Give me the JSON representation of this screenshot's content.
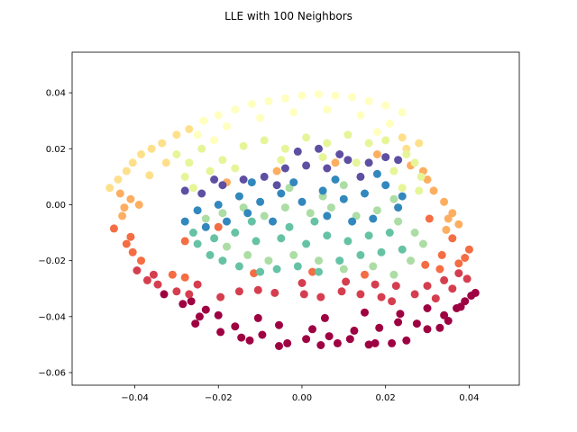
{
  "chart_data": {
    "type": "scatter",
    "title": "LLE with 100 Neighbors",
    "xlabel": "",
    "ylabel": "",
    "xlim": [
      -0.055,
      0.052
    ],
    "ylim": [
      -0.0645,
      0.0545
    ],
    "xticks": [
      -0.04,
      -0.02,
      0.0,
      0.02,
      0.04
    ],
    "xtick_labels": [
      "−0.04",
      "−0.02",
      "0.00",
      "0.02",
      "0.04"
    ],
    "yticks": [
      -0.06,
      -0.04,
      -0.02,
      0.0,
      0.02,
      0.04
    ],
    "ytick_labels": [
      "−0.06",
      "−0.04",
      "−0.02",
      "0.00",
      "0.02",
      "0.04"
    ],
    "grid": false,
    "colormap": "Spectral",
    "colormap_stops": [
      "#9e0142",
      "#d53e4f",
      "#f46d43",
      "#fdae61",
      "#fee08b",
      "#ffffbf",
      "#e6f598",
      "#abdda4",
      "#66c2a5",
      "#3288bd",
      "#5e4fa2"
    ],
    "points": [
      [
        -0.0055,
        -0.0505,
        0.0
      ],
      [
        -0.0035,
        -0.0495,
        0.0
      ],
      [
        0.0045,
        -0.0502,
        0.0
      ],
      [
        0.016,
        -0.05,
        0.0
      ],
      [
        0.0175,
        -0.0495,
        0.0
      ],
      [
        0.0215,
        -0.0495,
        0.0
      ],
      [
        -0.0145,
        -0.0475,
        0.0
      ],
      [
        -0.0125,
        -0.0485,
        0.0
      ],
      [
        0.0085,
        -0.0495,
        0.0
      ],
      [
        0.025,
        -0.0485,
        0.0
      ],
      [
        -0.0195,
        -0.0455,
        0.0
      ],
      [
        -0.0095,
        -0.0465,
        0.0
      ],
      [
        0.001,
        -0.048,
        0.0
      ],
      [
        0.0065,
        -0.047,
        0.0
      ],
      [
        0.0115,
        -0.048,
        0.0
      ],
      [
        0.03,
        -0.0445,
        0.0
      ],
      [
        0.033,
        -0.044,
        0.0
      ],
      [
        0.035,
        -0.0415,
        0.0
      ],
      [
        -0.0245,
        -0.04,
        0.0
      ],
      [
        -0.0255,
        -0.0425,
        0.0
      ],
      [
        -0.016,
        -0.0435,
        0.0
      ],
      [
        -0.0055,
        -0.043,
        0.0
      ],
      [
        0.0025,
        -0.0445,
        0.0
      ],
      [
        0.0125,
        -0.045,
        0.0
      ],
      [
        0.0185,
        -0.044,
        0.0
      ],
      [
        0.023,
        -0.042,
        0.0
      ],
      [
        0.0275,
        -0.0425,
        0.0
      ],
      [
        0.038,
        -0.0365,
        0.0
      ],
      [
        0.039,
        -0.0345,
        0.0
      ],
      [
        0.0405,
        -0.0325,
        0.0
      ],
      [
        0.0415,
        -0.0315,
        0.0
      ],
      [
        -0.0285,
        -0.0355,
        0.0
      ],
      [
        -0.023,
        -0.0375,
        0.0
      ],
      [
        -0.02,
        -0.0395,
        0.0
      ],
      [
        -0.0105,
        -0.0405,
        0.0
      ],
      [
        0.0055,
        -0.0405,
        0.0
      ],
      [
        0.015,
        -0.0385,
        0.0
      ],
      [
        0.0235,
        -0.039,
        0.0
      ],
      [
        0.034,
        -0.0395,
        0.0
      ],
      [
        0.037,
        -0.037,
        0.0
      ],
      [
        -0.033,
        -0.032,
        0.0
      ],
      [
        -0.0265,
        -0.0345,
        0.0
      ],
      [
        0.03,
        -0.037,
        0.0
      ],
      [
        -0.037,
        -0.027,
        0.1
      ],
      [
        -0.0345,
        -0.0285,
        0.1
      ],
      [
        -0.03,
        -0.031,
        0.1
      ],
      [
        -0.027,
        -0.032,
        0.1
      ],
      [
        -0.0195,
        -0.033,
        0.1
      ],
      [
        -0.015,
        -0.031,
        0.1
      ],
      [
        -0.0105,
        -0.0305,
        0.1
      ],
      [
        -0.0065,
        -0.0315,
        0.1
      ],
      [
        0.0005,
        -0.032,
        0.1
      ],
      [
        0.0045,
        -0.033,
        0.1
      ],
      [
        0.0095,
        -0.031,
        0.1
      ],
      [
        0.014,
        -0.032,
        0.1
      ],
      [
        0.019,
        -0.033,
        0.1
      ],
      [
        0.0215,
        -0.0345,
        0.1
      ],
      [
        0.027,
        -0.032,
        0.1
      ],
      [
        0.032,
        -0.0335,
        0.1
      ],
      [
        0.036,
        -0.03,
        0.1
      ],
      [
        0.0395,
        -0.0265,
        0.1
      ],
      [
        0.0375,
        -0.0245,
        0.1
      ],
      [
        0.034,
        -0.027,
        0.1
      ],
      [
        -0.0395,
        -0.0235,
        0.1
      ],
      [
        -0.0355,
        -0.025,
        0.1
      ],
      [
        -0.025,
        -0.0285,
        0.1
      ],
      [
        0.0,
        -0.028,
        0.1
      ],
      [
        0.0105,
        -0.0275,
        0.1
      ],
      [
        0.0175,
        -0.0285,
        0.1
      ],
      [
        0.0225,
        -0.029,
        0.1
      ],
      [
        0.03,
        -0.029,
        0.1
      ],
      [
        -0.042,
        -0.014,
        0.2
      ],
      [
        -0.0405,
        -0.017,
        0.2
      ],
      [
        -0.0385,
        -0.02,
        0.2
      ],
      [
        -0.031,
        -0.025,
        0.2
      ],
      [
        -0.028,
        -0.026,
        0.2
      ],
      [
        0.033,
        -0.023,
        0.2
      ],
      [
        0.0375,
        -0.021,
        0.2
      ],
      [
        0.039,
        -0.019,
        0.2
      ],
      [
        0.04,
        -0.016,
        0.2
      ],
      [
        0.036,
        -0.012,
        0.2
      ],
      [
        0.0335,
        -0.018,
        0.2
      ],
      [
        -0.045,
        -0.0085,
        0.2
      ],
      [
        -0.041,
        -0.0115,
        0.2
      ],
      [
        -0.028,
        -0.013,
        0.2
      ],
      [
        -0.02,
        -0.008,
        0.2
      ],
      [
        0.0295,
        -0.0215,
        0.2
      ],
      [
        0.0305,
        -0.005,
        0.2
      ],
      [
        0.0025,
        -0.024,
        0.2
      ],
      [
        0.015,
        -0.025,
        0.2
      ],
      [
        -0.0115,
        -0.0245,
        0.2
      ],
      [
        -0.043,
        -0.004,
        0.3
      ],
      [
        -0.0425,
        -0.001,
        0.3
      ],
      [
        -0.041,
        0.002,
        0.3
      ],
      [
        -0.0435,
        0.004,
        0.3
      ],
      [
        0.034,
        0.001,
        0.3
      ],
      [
        0.036,
        -0.003,
        0.3
      ],
      [
        0.0375,
        -0.007,
        0.3
      ],
      [
        0.0345,
        -0.009,
        0.3
      ],
      [
        0.0315,
        0.005,
        0.3
      ],
      [
        0.03,
        0.009,
        0.3
      ],
      [
        0.029,
        0.012,
        0.3
      ],
      [
        0.026,
        0.014,
        0.3
      ],
      [
        -0.018,
        0.008,
        0.3
      ],
      [
        -0.006,
        0.012,
        0.3
      ],
      [
        0.008,
        0.015,
        0.3
      ],
      [
        0.018,
        0.018,
        0.3
      ],
      [
        -0.039,
        0.0,
        0.3
      ],
      [
        0.035,
        -0.005,
        0.3
      ],
      [
        -0.046,
        0.006,
        0.4
      ],
      [
        -0.044,
        0.009,
        0.4
      ],
      [
        -0.042,
        0.012,
        0.4
      ],
      [
        -0.0405,
        0.015,
        0.4
      ],
      [
        -0.0385,
        0.018,
        0.4
      ],
      [
        -0.036,
        0.02,
        0.4
      ],
      [
        -0.0335,
        0.022,
        0.4
      ],
      [
        0.025,
        0.02,
        0.4
      ],
      [
        0.028,
        0.022,
        0.4
      ],
      [
        0.024,
        0.024,
        0.4
      ],
      [
        -0.03,
        0.025,
        0.4
      ],
      [
        -0.027,
        0.027,
        0.4
      ],
      [
        -0.0365,
        0.0105,
        0.4
      ],
      [
        -0.0325,
        0.015,
        0.4
      ],
      [
        -0.0235,
        0.03,
        0.5
      ],
      [
        -0.02,
        0.032,
        0.5
      ],
      [
        -0.016,
        0.034,
        0.5
      ],
      [
        -0.012,
        0.036,
        0.5
      ],
      [
        -0.008,
        0.037,
        0.5
      ],
      [
        -0.004,
        0.038,
        0.5
      ],
      [
        0.0,
        0.039,
        0.5
      ],
      [
        0.004,
        0.0395,
        0.5
      ],
      [
        0.008,
        0.039,
        0.5
      ],
      [
        0.012,
        0.0385,
        0.5
      ],
      [
        0.016,
        0.037,
        0.5
      ],
      [
        0.02,
        0.0355,
        0.5
      ],
      [
        0.024,
        0.033,
        0.5
      ],
      [
        -0.025,
        0.025,
        0.5
      ],
      [
        -0.018,
        0.028,
        0.5
      ],
      [
        -0.01,
        0.031,
        0.5
      ],
      [
        -0.002,
        0.033,
        0.5
      ],
      [
        0.006,
        0.034,
        0.5
      ],
      [
        0.014,
        0.032,
        0.5
      ],
      [
        0.021,
        0.029,
        0.5
      ],
      [
        -0.021,
        0.023,
        0.5
      ],
      [
        0.018,
        0.026,
        0.5
      ],
      [
        -0.03,
        0.018,
        0.6
      ],
      [
        -0.027,
        0.015,
        0.6
      ],
      [
        -0.024,
        0.02,
        0.6
      ],
      [
        -0.019,
        0.016,
        0.6
      ],
      [
        -0.014,
        0.021,
        0.6
      ],
      [
        -0.009,
        0.023,
        0.6
      ],
      [
        -0.004,
        0.02,
        0.6
      ],
      [
        0.001,
        0.024,
        0.6
      ],
      [
        0.006,
        0.022,
        0.6
      ],
      [
        0.011,
        0.025,
        0.6
      ],
      [
        0.016,
        0.022,
        0.6
      ],
      [
        0.02,
        0.023,
        0.6
      ],
      [
        0.025,
        0.018,
        0.6
      ],
      [
        0.027,
        0.015,
        0.6
      ],
      [
        0.0285,
        0.01,
        0.6
      ],
      [
        -0.022,
        0.012,
        0.6
      ],
      [
        -0.016,
        0.013,
        0.6
      ],
      [
        -0.005,
        0.016,
        0.6
      ],
      [
        0.005,
        0.017,
        0.6
      ],
      [
        0.013,
        0.015,
        0.6
      ],
      [
        0.022,
        0.012,
        0.6
      ],
      [
        -0.028,
        0.01,
        0.6
      ],
      [
        0.028,
        0.005,
        0.6
      ],
      [
        0.024,
        0.006,
        0.6
      ],
      [
        -0.026,
        0.006,
        0.6
      ],
      [
        -0.023,
        -0.005,
        0.7
      ],
      [
        -0.019,
        -0.003,
        0.7
      ],
      [
        -0.014,
        -0.001,
        0.7
      ],
      [
        -0.009,
        -0.004,
        0.7
      ],
      [
        -0.004,
        -0.001,
        0.7
      ],
      [
        0.002,
        -0.003,
        0.7
      ],
      [
        0.007,
        -0.001,
        0.7
      ],
      [
        0.013,
        -0.004,
        0.7
      ],
      [
        0.018,
        -0.002,
        0.7
      ],
      [
        0.023,
        -0.006,
        0.7
      ],
      [
        0.027,
        -0.01,
        0.7
      ],
      [
        0.029,
        -0.014,
        0.7
      ],
      [
        0.026,
        -0.02,
        0.7
      ],
      [
        0.022,
        -0.025,
        0.7
      ],
      [
        0.017,
        -0.022,
        0.7
      ],
      [
        0.01,
        -0.023,
        0.7
      ],
      [
        0.004,
        -0.02,
        0.7
      ],
      [
        -0.002,
        -0.018,
        0.7
      ],
      [
        -0.008,
        -0.02,
        0.7
      ],
      [
        -0.013,
        -0.018,
        0.7
      ],
      [
        -0.018,
        -0.015,
        0.7
      ],
      [
        0.005,
        0.003,
        0.7
      ],
      [
        0.01,
        0.007,
        0.7
      ],
      [
        -0.003,
        0.006,
        0.7
      ],
      [
        0.022,
        0.002,
        0.7
      ],
      [
        -0.025,
        -0.014,
        0.8
      ],
      [
        -0.022,
        -0.018,
        0.8
      ],
      [
        -0.019,
        -0.02,
        0.8
      ],
      [
        -0.015,
        -0.022,
        0.8
      ],
      [
        -0.01,
        -0.024,
        0.8
      ],
      [
        -0.006,
        -0.023,
        0.8
      ],
      [
        -0.001,
        -0.022,
        0.8
      ],
      [
        0.004,
        -0.024,
        0.8
      ],
      [
        0.009,
        -0.02,
        0.8
      ],
      [
        0.014,
        -0.018,
        0.8
      ],
      [
        0.019,
        -0.017,
        0.8
      ],
      [
        0.024,
        -0.016,
        0.8
      ],
      [
        -0.026,
        -0.01,
        0.8
      ],
      [
        -0.021,
        -0.012,
        0.8
      ],
      [
        -0.016,
        -0.01,
        0.8
      ],
      [
        -0.011,
        -0.013,
        0.8
      ],
      [
        -0.005,
        -0.012,
        0.8
      ],
      [
        0.001,
        -0.014,
        0.8
      ],
      [
        0.006,
        -0.011,
        0.8
      ],
      [
        0.011,
        -0.013,
        0.8
      ],
      [
        0.016,
        -0.011,
        0.8
      ],
      [
        0.021,
        -0.01,
        0.8
      ],
      [
        -0.003,
        -0.008,
        0.8
      ],
      [
        0.003,
        -0.006,
        0.8
      ],
      [
        -0.012,
        -0.006,
        0.8
      ],
      [
        -0.028,
        -0.006,
        0.9
      ],
      [
        -0.025,
        -0.002,
        0.9
      ],
      [
        -0.02,
        0.0,
        0.9
      ],
      [
        -0.015,
        0.003,
        0.9
      ],
      [
        -0.01,
        0.001,
        0.9
      ],
      [
        -0.005,
        0.004,
        0.9
      ],
      [
        0.0,
        0.001,
        0.9
      ],
      [
        0.005,
        0.005,
        0.9
      ],
      [
        0.01,
        0.002,
        0.9
      ],
      [
        0.015,
        0.004,
        0.9
      ],
      [
        0.02,
        0.007,
        0.9
      ],
      [
        0.024,
        0.003,
        0.9
      ],
      [
        -0.023,
        -0.008,
        0.9
      ],
      [
        -0.018,
        -0.006,
        0.9
      ],
      [
        -0.013,
        -0.003,
        0.9
      ],
      [
        -0.007,
        -0.006,
        0.9
      ],
      [
        0.006,
        -0.004,
        0.9
      ],
      [
        0.012,
        -0.006,
        0.9
      ],
      [
        0.017,
        -0.005,
        0.9
      ],
      [
        -0.002,
        0.008,
        0.9
      ],
      [
        0.008,
        0.009,
        0.9
      ],
      [
        0.018,
        0.011,
        0.9
      ],
      [
        -0.012,
        0.008,
        0.9
      ],
      [
        0.023,
        -0.001,
        0.9
      ],
      [
        -0.028,
        0.005,
        1.0
      ],
      [
        -0.024,
        0.004,
        1.0
      ],
      [
        -0.019,
        0.007,
        1.0
      ],
      [
        -0.014,
        0.009,
        1.0
      ],
      [
        -0.009,
        0.01,
        1.0
      ],
      [
        -0.004,
        0.013,
        1.0
      ],
      [
        0.001,
        0.014,
        1.0
      ],
      [
        0.006,
        0.013,
        1.0
      ],
      [
        0.011,
        0.016,
        1.0
      ],
      [
        0.016,
        0.015,
        1.0
      ],
      [
        0.02,
        0.017,
        1.0
      ],
      [
        0.023,
        0.016,
        1.0
      ],
      [
        -0.001,
        0.019,
        1.0
      ],
      [
        0.004,
        0.02,
        1.0
      ],
      [
        0.009,
        0.018,
        1.0
      ],
      [
        -0.006,
        0.007,
        1.0
      ],
      [
        0.014,
        0.01,
        1.0
      ],
      [
        -0.021,
        0.009,
        1.0
      ]
    ]
  }
}
